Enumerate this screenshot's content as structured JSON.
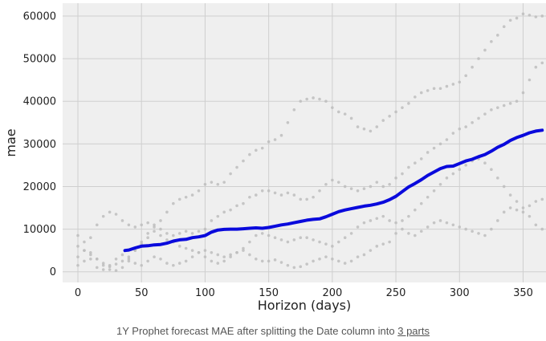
{
  "chart_data": {
    "type": "line",
    "xlabel": "Horizon (days)",
    "ylabel": "mae",
    "xlim": [
      -12,
      368
    ],
    "ylim": [
      -2500,
      63000
    ],
    "x_ticks": [
      0,
      50,
      100,
      150,
      200,
      250,
      300,
      350
    ],
    "y_ticks": [
      0,
      10000,
      20000,
      30000,
      40000,
      50000,
      60000
    ],
    "grid": true,
    "background": "#efefef",
    "series": [
      {
        "style": "line",
        "color": "#0a0adc",
        "x": [
          37,
          40,
          45,
          50,
          55,
          60,
          65,
          70,
          75,
          80,
          85,
          90,
          95,
          100,
          105,
          110,
          115,
          120,
          125,
          130,
          135,
          140,
          145,
          150,
          155,
          160,
          165,
          170,
          175,
          180,
          185,
          190,
          195,
          200,
          205,
          210,
          215,
          220,
          225,
          230,
          235,
          240,
          245,
          250,
          255,
          260,
          265,
          270,
          275,
          280,
          285,
          290,
          295,
          300,
          305,
          310,
          315,
          320,
          325,
          330,
          335,
          340,
          345,
          350,
          355,
          360,
          365
        ],
        "y": [
          5000,
          5100,
          5600,
          6000,
          6100,
          6300,
          6400,
          6700,
          7200,
          7500,
          7600,
          8000,
          8200,
          8500,
          9300,
          9800,
          9950,
          10000,
          10000,
          10100,
          10200,
          10300,
          10200,
          10400,
          10700,
          11000,
          11200,
          11500,
          11800,
          12100,
          12300,
          12400,
          12900,
          13500,
          14100,
          14500,
          14800,
          15100,
          15400,
          15600,
          15900,
          16300,
          16900,
          17700,
          18800,
          19900,
          20700,
          21600,
          22600,
          23400,
          24200,
          24700,
          24800,
          25400,
          26000,
          26400,
          27000,
          27500,
          28300,
          29200,
          29900,
          30800,
          31500,
          32000,
          32600,
          33000,
          33200
        ]
      },
      {
        "style": "points",
        "color": "#bdbdbd",
        "x": [
          0,
          5,
          10,
          15,
          20,
          25,
          30,
          35,
          40,
          45,
          50,
          55,
          60,
          65,
          70,
          75,
          80,
          85,
          90,
          95,
          100,
          105,
          110,
          115,
          120,
          125,
          130,
          135,
          140,
          145,
          150,
          155,
          160,
          165,
          170,
          175,
          180,
          185,
          190,
          195,
          200,
          205,
          210,
          215,
          220,
          225,
          230,
          235,
          240,
          245,
          250,
          255,
          260,
          265,
          270,
          275,
          280,
          285,
          290,
          295,
          300,
          305,
          310,
          315,
          320,
          325,
          330,
          335,
          340,
          345,
          350,
          355,
          360,
          365
        ],
        "y": [
          8500,
          7000,
          4500,
          3000,
          1500,
          1200,
          1800,
          2500,
          3500,
          5000,
          6500,
          8000,
          10500,
          12000,
          14000,
          16000,
          17000,
          17500,
          18000,
          19000,
          20500,
          21000,
          20500,
          21000,
          23000,
          24500,
          26000,
          27500,
          28500,
          29000,
          30500,
          31000,
          32000,
          35000,
          38000,
          40000,
          40500,
          40800,
          40500,
          40000,
          38500,
          37500,
          37000,
          36000,
          34000,
          33500,
          33000,
          34000,
          35500,
          36500,
          37500,
          38500,
          39500,
          41000,
          42000,
          42500,
          43000,
          43000,
          43500,
          44000,
          44500,
          46000,
          48000,
          50000,
          52000,
          54000,
          55500,
          57500,
          59000,
          59500,
          60500,
          60200,
          59800,
          60000
        ]
      },
      {
        "style": "points",
        "color": "#bdbdbd",
        "x": [
          0,
          5,
          10,
          15,
          20,
          25,
          30,
          35,
          40,
          45,
          50,
          55,
          60,
          65,
          70,
          75,
          80,
          85,
          90,
          95,
          100,
          105,
          110,
          115,
          120,
          125,
          130,
          135,
          140,
          145,
          150,
          155,
          160,
          165,
          170,
          175,
          180,
          185,
          190,
          195,
          200,
          205,
          210,
          215,
          220,
          225,
          230,
          235,
          240,
          245,
          250,
          255,
          260,
          265,
          270,
          275,
          280,
          285,
          290,
          295,
          300,
          305,
          310,
          315,
          320,
          325,
          330,
          335,
          340,
          345,
          350,
          355,
          360,
          365
        ],
        "y": [
          3500,
          5000,
          8000,
          11000,
          13000,
          14000,
          13500,
          12000,
          11000,
          10500,
          11000,
          11500,
          11000,
          10000,
          9000,
          8500,
          9000,
          9500,
          9000,
          9500,
          10000,
          12000,
          13000,
          14000,
          14500,
          15500,
          16000,
          17500,
          18000,
          19000,
          19000,
          18500,
          18000,
          18500,
          18000,
          17000,
          17000,
          17500,
          19000,
          20500,
          21500,
          21000,
          20000,
          19500,
          19000,
          19500,
          20000,
          21000,
          20000,
          20500,
          22000,
          23000,
          24500,
          25500,
          26500,
          28000,
          29000,
          30000,
          31000,
          32500,
          33500,
          34000,
          35000,
          36000,
          37000,
          38000,
          38500,
          39000,
          39500,
          40000,
          42000,
          45000,
          48000,
          49000
        ]
      },
      {
        "style": "points",
        "color": "#bdbdbd",
        "x": [
          0,
          5,
          10,
          15,
          20,
          25,
          30,
          35,
          40,
          45,
          50,
          55,
          60,
          65,
          70,
          75,
          80,
          85,
          90,
          95,
          100,
          105,
          110,
          115,
          120,
          125,
          130,
          135,
          140,
          145,
          150,
          155,
          160,
          165,
          170,
          175,
          180,
          185,
          190,
          195,
          200,
          205,
          210,
          215,
          220,
          225,
          230,
          235,
          240,
          245,
          250,
          255,
          260,
          265,
          270,
          275,
          280,
          285,
          290,
          295,
          300,
          305,
          310,
          315,
          320,
          325,
          330,
          335,
          340,
          345,
          350,
          355,
          360,
          365
        ],
        "y": [
          1500,
          2500,
          4000,
          3000,
          2000,
          500,
          300,
          1000,
          2500,
          5000,
          7000,
          9000,
          9500,
          8500,
          7500,
          7000,
          6000,
          5500,
          5000,
          4500,
          3500,
          2500,
          2000,
          2500,
          3500,
          4500,
          5500,
          7000,
          8500,
          9000,
          8500,
          8000,
          7500,
          7000,
          7500,
          8000,
          8000,
          7500,
          7000,
          6500,
          6000,
          7000,
          8000,
          9000,
          10500,
          11500,
          12000,
          12500,
          13000,
          12000,
          11500,
          12000,
          13000,
          14500,
          16000,
          17500,
          19000,
          20500,
          22000,
          23000,
          24000,
          25000,
          26000,
          26500,
          25500,
          24000,
          22000,
          20000,
          18000,
          16500,
          15000,
          15500,
          16500,
          17000
        ]
      },
      {
        "style": "points",
        "color": "#bdbdbd",
        "x": [
          0,
          5,
          10,
          15,
          20,
          25,
          30,
          35,
          40,
          45,
          50,
          55,
          60,
          65,
          70,
          75,
          80,
          85,
          90,
          95,
          100,
          105,
          110,
          115,
          120,
          125,
          130,
          135,
          140,
          145,
          150,
          155,
          160,
          165,
          170,
          175,
          180,
          185,
          190,
          195,
          200,
          205,
          210,
          215,
          220,
          225,
          230,
          235,
          240,
          245,
          250,
          255,
          260,
          265,
          270,
          275,
          280,
          285,
          290,
          295,
          300,
          305,
          310,
          315,
          320,
          325,
          330,
          335,
          340,
          345,
          350,
          355,
          360,
          365
        ],
        "y": [
          6000,
          5000,
          3000,
          1000,
          500,
          1500,
          3000,
          4000,
          3000,
          2000,
          1500,
          2500,
          3500,
          3000,
          2000,
          1500,
          2000,
          2500,
          3500,
          4500,
          5000,
          4500,
          4000,
          3500,
          4000,
          4500,
          5000,
          4000,
          3000,
          2500,
          2500,
          2800,
          2200,
          1500,
          1000,
          1200,
          1800,
          2500,
          3000,
          3500,
          3000,
          2500,
          2000,
          2500,
          3500,
          4000,
          5000,
          6000,
          6500,
          7000,
          9000,
          10000,
          9000,
          8500,
          9500,
          10500,
          11500,
          12000,
          11500,
          11000,
          10500,
          10000,
          9500,
          9000,
          8500,
          10000,
          12000,
          14000,
          15000,
          14500,
          14000,
          13000,
          11000,
          10000
        ]
      }
    ]
  },
  "caption": {
    "text": "1Y Prophet forecast MAE after splitting the Date column into ",
    "link": "3 parts"
  }
}
